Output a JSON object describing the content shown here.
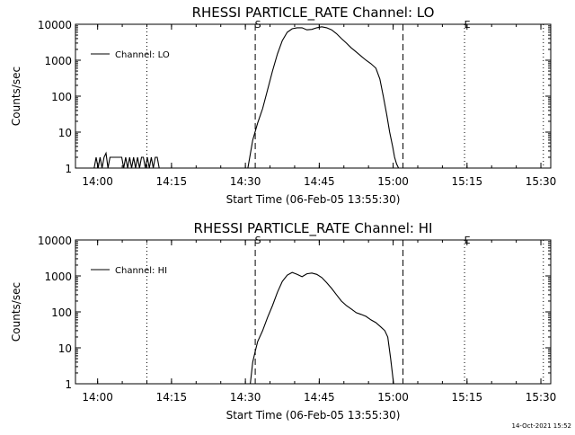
{
  "timestamp": "14-Oct-2021 15:52",
  "colors": {
    "background": "#ffffff",
    "foreground": "#000000"
  },
  "chart_data": [
    {
      "type": "line",
      "title": "RHESSI PARTICLE_RATE Channel: LO",
      "xlabel": "Start Time (06-Feb-05 13:55:30)",
      "ylabel": "Counts/sec",
      "yscale": "log",
      "ylim": [
        1,
        10000
      ],
      "xlim": [
        0,
        96.5
      ],
      "x_units": "minutes since 13:55:30",
      "x_ticks": [
        {
          "label": "14:00",
          "value": 4.5
        },
        {
          "label": "14:15",
          "value": 19.5
        },
        {
          "label": "14:30",
          "value": 34.5
        },
        {
          "label": "14:45",
          "value": 49.5
        },
        {
          "label": "15:00",
          "value": 64.5
        },
        {
          "label": "15:15",
          "value": 79.5
        },
        {
          "label": "15:30",
          "value": 94.5
        }
      ],
      "y_ticks": [
        {
          "label": "1",
          "value": 1
        },
        {
          "label": "10",
          "value": 10
        },
        {
          "label": "100",
          "value": 100
        },
        {
          "label": "1000",
          "value": 1000
        },
        {
          "label": "10000",
          "value": 10000
        }
      ],
      "legend": {
        "label": "Channel: LO",
        "placement": "top-left"
      },
      "vlines": [
        {
          "x": 14.5,
          "style": "dotted",
          "label": ""
        },
        {
          "x": 36.5,
          "style": "dashed",
          "label": "S"
        },
        {
          "x": 66.5,
          "style": "dashed",
          "label": ""
        },
        {
          "x": 79.0,
          "style": "dotted",
          "label": "E"
        },
        {
          "x": 95.0,
          "style": "dotted",
          "label": ""
        }
      ],
      "series": [
        {
          "name": "Channel: LO",
          "x": [
            3.8,
            4.2,
            4.6,
            5.0,
            5.4,
            5.8,
            6.2,
            6.6,
            7.0,
            7.4,
            7.8,
            8.2,
            8.6,
            9.0,
            9.4,
            9.8,
            10.2,
            10.6,
            11.0,
            11.4,
            11.8,
            12.2,
            12.6,
            13.0,
            13.4,
            13.8,
            14.2,
            14.6,
            15.0,
            15.4,
            15.8,
            16.2,
            16.6,
            17.0
          ],
          "y": [
            1,
            2,
            1,
            2,
            1,
            2,
            2.6,
            1,
            2,
            2,
            2,
            2,
            2,
            2,
            2,
            1,
            2,
            1,
            2,
            1,
            2,
            1,
            2,
            1,
            2,
            2,
            1,
            2,
            1,
            2,
            1,
            2,
            2,
            1
          ]
        },
        {
          "name": "Channel: LO",
          "x": [
            35.0,
            36.0,
            37.0,
            38.0,
            39.0,
            40.0,
            41.0,
            42.0,
            43.0,
            44.0,
            45.0,
            46.0,
            47.0,
            48.0,
            49.0,
            50.0,
            51.0,
            52.0,
            53.0,
            54.0,
            55.0,
            56.0,
            57.0,
            58.0,
            59.0,
            60.0,
            61.0,
            61.8,
            62.5,
            63.2,
            63.8,
            64.4,
            64.8,
            65.2,
            65.6
          ],
          "y": [
            1,
            6,
            18,
            45,
            150,
            500,
            1500,
            3500,
            6000,
            7500,
            8000,
            8000,
            7000,
            7200,
            8000,
            8500,
            8000,
            7000,
            5500,
            4000,
            3000,
            2200,
            1700,
            1300,
            1000,
            800,
            600,
            300,
            100,
            30,
            10,
            4,
            2,
            1.3,
            1
          ]
        }
      ]
    },
    {
      "type": "line",
      "title": "RHESSI PARTICLE_RATE Channel: HI",
      "xlabel": "Start Time (06-Feb-05 13:55:30)",
      "ylabel": "Counts/sec",
      "yscale": "log",
      "ylim": [
        1,
        10000
      ],
      "xlim": [
        0,
        96.5
      ],
      "x_units": "minutes since 13:55:30",
      "x_ticks": [
        {
          "label": "14:00",
          "value": 4.5
        },
        {
          "label": "14:15",
          "value": 19.5
        },
        {
          "label": "14:30",
          "value": 34.5
        },
        {
          "label": "14:45",
          "value": 49.5
        },
        {
          "label": "15:00",
          "value": 64.5
        },
        {
          "label": "15:15",
          "value": 79.5
        },
        {
          "label": "15:30",
          "value": 94.5
        }
      ],
      "y_ticks": [
        {
          "label": "1",
          "value": 1
        },
        {
          "label": "10",
          "value": 10
        },
        {
          "label": "100",
          "value": 100
        },
        {
          "label": "1000",
          "value": 1000
        },
        {
          "label": "10000",
          "value": 10000
        }
      ],
      "legend": {
        "label": "Channel: HI",
        "placement": "top-left"
      },
      "vlines": [
        {
          "x": 14.5,
          "style": "dotted",
          "label": ""
        },
        {
          "x": 36.5,
          "style": "dashed",
          "label": "S"
        },
        {
          "x": 66.5,
          "style": "dashed",
          "label": ""
        },
        {
          "x": 79.0,
          "style": "dotted",
          "label": "E"
        },
        {
          "x": 95.0,
          "style": "dotted",
          "label": ""
        }
      ],
      "series": [
        {
          "name": "Channel: HI",
          "x": [
            35.5,
            36.0,
            36.5,
            37.0,
            38.0,
            39.0,
            40.0,
            41.0,
            42.0,
            43.0,
            44.0,
            45.0,
            46.0,
            47.0,
            48.0,
            49.0,
            50.0,
            51.0,
            52.0,
            53.0,
            54.0,
            55.0,
            56.0,
            57.0,
            58.0,
            59.0,
            60.0,
            61.0,
            62.0,
            62.8,
            63.4,
            64.0,
            64.6
          ],
          "y": [
            1,
            4,
            8,
            15,
            30,
            70,
            150,
            350,
            700,
            1050,
            1250,
            1100,
            950,
            1150,
            1200,
            1100,
            900,
            650,
            450,
            300,
            200,
            150,
            120,
            95,
            85,
            75,
            60,
            50,
            38,
            30,
            20,
            5,
            1
          ]
        }
      ]
    }
  ]
}
